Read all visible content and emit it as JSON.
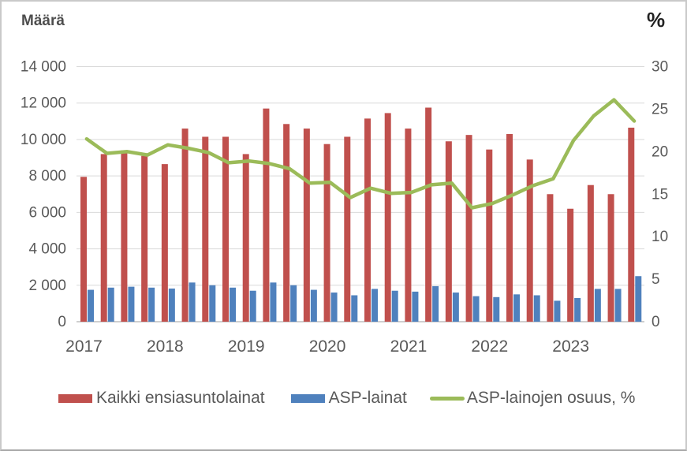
{
  "titles": {
    "left_axis": "Määrä",
    "right_axis": "%"
  },
  "colors": {
    "all_loans_red": "#C0504D",
    "asp_loans_blue": "#4F81BD",
    "asp_share_green": "#9BBB59",
    "gridline": "#D9D9D9",
    "axis_line": "#BFBFBF",
    "tick_text": "#595959"
  },
  "legend": {
    "items": [
      {
        "label": "Kaikki ensiasuntolainat",
        "color": "#C0504D",
        "marker": "bar"
      },
      {
        "label": "ASP-lainat",
        "color": "#4F81BD",
        "marker": "bar"
      },
      {
        "label": "ASP-lainojen osuus, %",
        "color": "#9BBB59",
        "marker": "line"
      }
    ]
  },
  "chart_data": {
    "type": "combo",
    "categories": [
      "2017Q1",
      "2017Q2",
      "2017Q3",
      "2017Q4",
      "2018Q1",
      "2018Q2",
      "2018Q3",
      "2018Q4",
      "2019Q1",
      "2019Q2",
      "2019Q3",
      "2019Q4",
      "2020Q1",
      "2020Q2",
      "2020Q3",
      "2020Q4",
      "2021Q1",
      "2021Q2",
      "2021Q3",
      "2021Q4",
      "2022Q1",
      "2022Q2",
      "2022Q3",
      "2022Q4",
      "2023Q1",
      "2023Q2",
      "2023Q3",
      "2023Q4"
    ],
    "x_tick_labels": [
      "2017",
      "2018",
      "2019",
      "2020",
      "2021",
      "2022",
      "2023"
    ],
    "series": [
      {
        "name": "Kaikki ensiasuntolainat",
        "type": "bar",
        "axis": "left",
        "color": "#C0504D",
        "values": [
          7950,
          9200,
          9400,
          9100,
          8650,
          10600,
          10150,
          10150,
          9200,
          11700,
          10850,
          10600,
          9750,
          10150,
          11150,
          11450,
          10600,
          11750,
          9900,
          10250,
          9450,
          10300,
          8900,
          7000,
          6200,
          7500,
          7000,
          10650
        ]
      },
      {
        "name": "ASP-lainat",
        "type": "bar",
        "axis": "left",
        "color": "#4F81BD",
        "values": [
          1750,
          1870,
          1920,
          1870,
          1820,
          2150,
          2000,
          1870,
          1700,
          2150,
          2000,
          1750,
          1600,
          1450,
          1800,
          1700,
          1650,
          1950,
          1600,
          1400,
          1350,
          1500,
          1450,
          1150,
          1300,
          1800,
          1800,
          2500
        ]
      },
      {
        "name": "ASP-lainojen osuus, %",
        "type": "line",
        "axis": "right",
        "color": "#9BBB59",
        "values": [
          21.5,
          19.8,
          20.0,
          19.6,
          20.8,
          20.4,
          19.9,
          18.7,
          18.9,
          18.6,
          18.0,
          16.3,
          16.4,
          14.6,
          15.7,
          15.1,
          15.2,
          16.1,
          16.3,
          13.4,
          13.9,
          14.9,
          16.0,
          16.8,
          21.3,
          24.2,
          26.1,
          23.6
        ]
      }
    ],
    "left_axis": {
      "title": "Määrä",
      "min": 0,
      "max": 14000,
      "step": 2000,
      "tick_labels": [
        "0",
        "2 000",
        "4 000",
        "6 000",
        "8 000",
        "10 000",
        "12 000",
        "14 000"
      ]
    },
    "right_axis": {
      "title": "%",
      "min": 0,
      "max": 30,
      "step": 5,
      "tick_labels": [
        "0",
        "5",
        "10",
        "15",
        "20",
        "25",
        "30"
      ]
    },
    "grid": true,
    "legend_position": "bottom"
  }
}
